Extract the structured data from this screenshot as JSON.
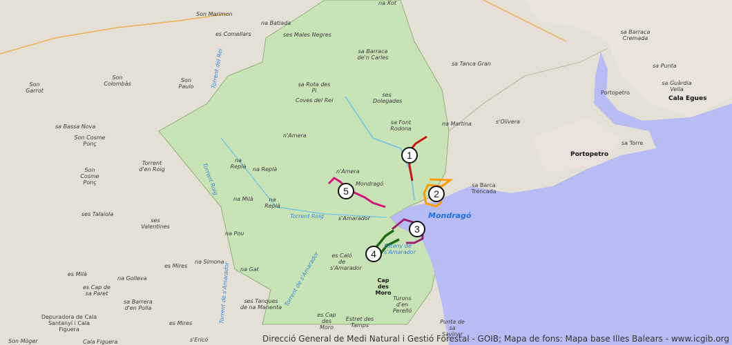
{
  "attribution": "Direcció General de Medi Natural i Gestió Forestal - GOIB; Mapa de fons: Mapa base Illes Balears - www.icgib.org",
  "colors": {
    "land": "#e4e0d6",
    "park": "#c8e4b6",
    "sea": "#b8bcf4",
    "town": "#e8d9d4"
  },
  "routes": [
    {
      "number": "1",
      "color": "#cc1111"
    },
    {
      "number": "2",
      "color": "#ff9a00"
    },
    {
      "number": "3",
      "color": "#a0206e"
    },
    {
      "number": "4",
      "color": "#1f6a14"
    },
    {
      "number": "5",
      "color": "#d4147a"
    }
  ],
  "labels": [
    "Son Marimon",
    "na Batiada",
    "es Comellars",
    "ses Males Negres",
    "sa Barraca de'n Carles",
    "Torrent del Rei",
    "Son Garrot",
    "Son Colombàs",
    "Son Paulo",
    "sa Rota des Pi",
    "Coves del Rei",
    "ses Dolegades",
    "sa Tanca Gran",
    "sa Font Rodona",
    "na Martina",
    "s'Olivera",
    "sa Barraca Cremada",
    "sa Punta",
    "Portopetro",
    "sa Guàrdia Vella",
    "Cala Egues",
    "Portopetro",
    "sa Torre",
    "sa Bassa Nova",
    "Son Cosme Ponç",
    "n'Amera",
    "na Replà",
    "Torrent Roig",
    "Torrent d'en Roig",
    "Son Cosme Ponç",
    "na Replà",
    "n'Amera",
    "Mondragó",
    "sa Barca Trencada",
    "na Milà",
    "na Replà",
    "Torrent Roig",
    "s'Amarador",
    "Mondragó",
    "ses Talaiola",
    "ses Valentines",
    "na Pou",
    "es Caló de s'Amarador",
    "es Mires",
    "na Simona",
    "na Gat",
    "es Milà",
    "na Golleva",
    "Cap des Moro",
    "es Cap de sa Paret",
    "ses Tanques de na Manenta",
    "Depuradora de Cala Santanyí i Cala Figuera",
    "sa Barrera d'en Polla",
    "es Mires",
    "es Cap des Moro",
    "Turons d'en Perelló",
    "Estret des Tamps",
    "Punta de sa Savinar",
    "Son Mòger",
    "Cala Figuera",
    "s'Ericó",
    "na Xot",
    "Torrent de s'Amarador",
    "Torrent de s'Amarador",
    "Estany de s'Amarador"
  ]
}
